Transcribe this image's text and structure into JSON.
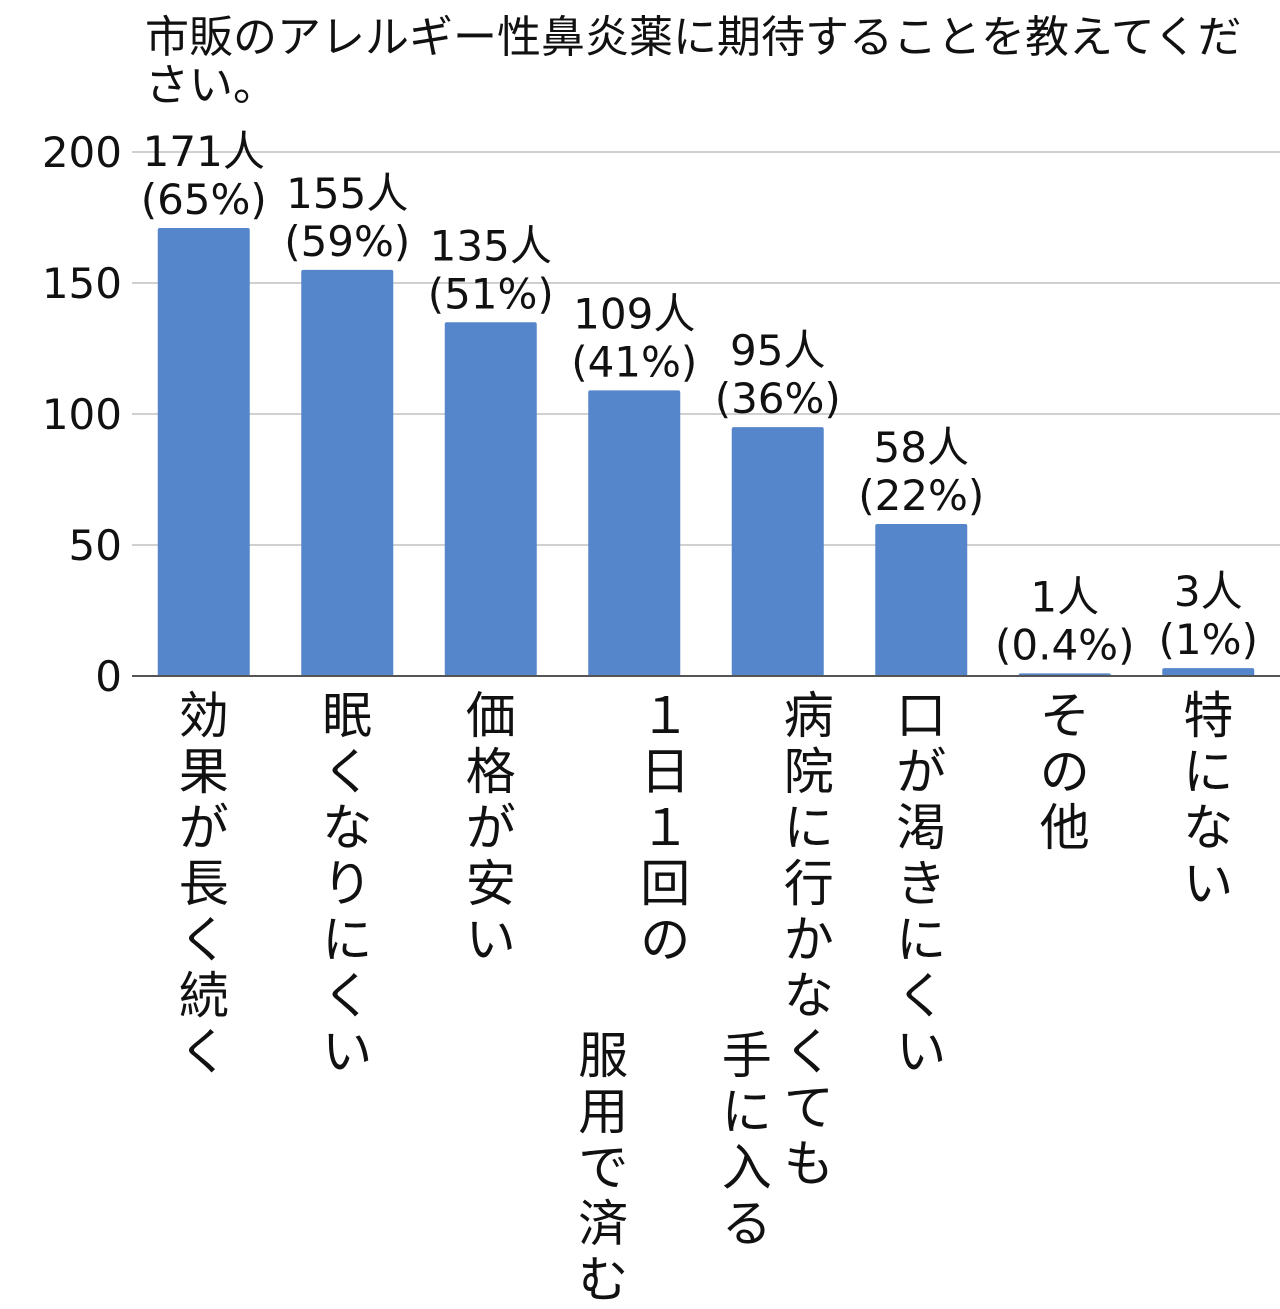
{
  "chart_data": {
    "type": "bar",
    "title": "市販のアレルギー性鼻炎薬に期待することを教えてください。",
    "ylim": [
      0,
      200
    ],
    "yticks": [
      0,
      50,
      100,
      150,
      200
    ],
    "grid": true,
    "bar_color": "#5585CB",
    "categories": [
      "効果が長く続く",
      "眠くなりにくい",
      "価格が安い",
      "１日１回の服用で済む",
      "病院に行かなくても手に入る",
      "口が渇きにくい",
      "その他",
      "特にない"
    ],
    "category_lines": [
      [
        "効果が長く続く"
      ],
      [
        "眠くなりにくい"
      ],
      [
        "価格が安い"
      ],
      [
        "１日１回の",
        "服用で済む"
      ],
      [
        "病院に行かなくても",
        "手に入る"
      ],
      [
        "口が渇きにくい"
      ],
      [
        "その他"
      ],
      [
        "特にない"
      ]
    ],
    "values": [
      171,
      155,
      135,
      109,
      95,
      58,
      1,
      3
    ],
    "count_labels": [
      "171人",
      "155人",
      "135人",
      "109人",
      "95人",
      "58人",
      "1人",
      "3人"
    ],
    "percent_labels": [
      "(65%)",
      "(59%)",
      "(51%)",
      "(41%)",
      "(36%)",
      "(22%)",
      "(0.4%)",
      "(1%)"
    ]
  }
}
